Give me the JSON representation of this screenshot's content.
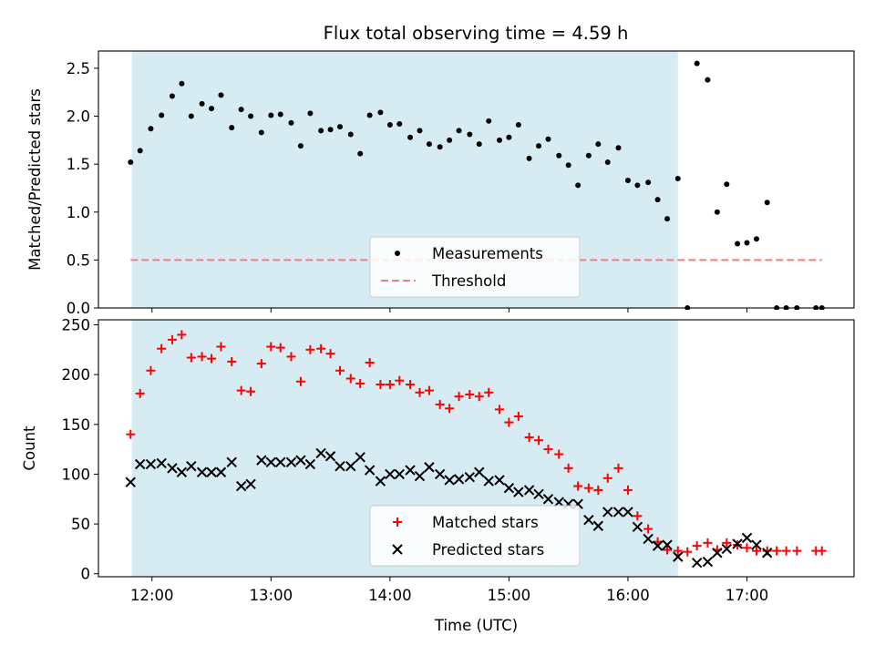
{
  "title": "Flux total observing time = 4.59 h",
  "colors": {
    "shade": "#add8e6",
    "threshold": "#f08080",
    "matched": "#ff0000",
    "predicted": "#000000",
    "measurement": "#000000"
  },
  "chart_data": [
    {
      "type": "scatter",
      "panel": "top",
      "ylabel": "Matched/Predicted stars",
      "xlim": [
        11.55,
        17.9
      ],
      "ylim": [
        0,
        2.68
      ],
      "yticks": [
        0.0,
        0.5,
        1.0,
        1.5,
        2.0,
        2.5
      ],
      "ytick_labels": [
        "0.0",
        "0.5",
        "1.0",
        "1.5",
        "2.0",
        "2.5"
      ],
      "shaded_span": [
        11.83,
        16.42
      ],
      "legend": {
        "placement": "lower-center",
        "entries": [
          "Measurements",
          "Threshold"
        ]
      },
      "series": [
        {
          "name": "Measurements",
          "marker": "dot",
          "x": [
            11.82,
            11.9,
            11.99,
            12.08,
            12.17,
            12.25,
            12.33,
            12.42,
            12.5,
            12.58,
            12.67,
            12.75,
            12.83,
            12.92,
            13.0,
            13.08,
            13.17,
            13.25,
            13.33,
            13.42,
            13.5,
            13.58,
            13.67,
            13.75,
            13.83,
            13.92,
            14.0,
            14.08,
            14.17,
            14.25,
            14.33,
            14.42,
            14.5,
            14.58,
            14.67,
            14.75,
            14.83,
            14.92,
            15.0,
            15.08,
            15.17,
            15.25,
            15.33,
            15.42,
            15.5,
            15.58,
            15.67,
            15.75,
            15.83,
            15.92,
            16.0,
            16.08,
            16.17,
            16.25,
            16.33,
            16.42,
            16.5,
            16.58,
            16.67,
            16.75,
            16.83,
            16.92,
            17.0,
            17.08,
            17.17,
            17.25,
            17.33,
            17.42,
            17.58,
            17.63
          ],
          "y": [
            1.52,
            1.64,
            1.87,
            2.01,
            2.21,
            2.34,
            2.0,
            2.13,
            2.08,
            2.22,
            1.88,
            2.07,
            2.0,
            1.83,
            2.01,
            2.02,
            1.93,
            1.69,
            2.03,
            1.85,
            1.86,
            1.89,
            1.81,
            1.61,
            2.01,
            2.04,
            1.91,
            1.92,
            1.78,
            1.85,
            1.71,
            1.68,
            1.75,
            1.85,
            1.81,
            1.71,
            1.95,
            1.75,
            1.78,
            1.91,
            1.56,
            1.69,
            1.76,
            1.59,
            1.49,
            1.28,
            1.59,
            1.71,
            1.52,
            1.67,
            1.33,
            1.28,
            1.31,
            1.13,
            0.93,
            1.35,
            0.0,
            2.55,
            2.38,
            1.0,
            1.29,
            0.67,
            0.68,
            0.72,
            1.1,
            0.0,
            0.0,
            0.0,
            0.0,
            0.0
          ]
        },
        {
          "name": "Threshold",
          "style": "dashed-line",
          "x": [
            11.82,
            17.63
          ],
          "y": [
            0.5,
            0.5
          ]
        }
      ]
    },
    {
      "type": "scatter",
      "panel": "bottom",
      "xlabel": "Time (UTC)",
      "ylabel": "Count",
      "xlim": [
        11.55,
        17.9
      ],
      "ylim": [
        -3,
        255
      ],
      "yticks": [
        0,
        50,
        100,
        150,
        200,
        250
      ],
      "ytick_labels": [
        "0",
        "50",
        "100",
        "150",
        "200",
        "250"
      ],
      "xticks": [
        12,
        13,
        14,
        15,
        16,
        17
      ],
      "xtick_labels": [
        "12:00",
        "13:00",
        "14:00",
        "15:00",
        "16:00",
        "17:00"
      ],
      "shaded_span": [
        11.83,
        16.42
      ],
      "legend": {
        "placement": "lower-center",
        "entries": [
          "Matched stars",
          "Predicted stars"
        ]
      },
      "series": [
        {
          "name": "Matched stars",
          "marker": "plus",
          "x": [
            11.82,
            11.9,
            11.99,
            12.08,
            12.17,
            12.25,
            12.33,
            12.42,
            12.5,
            12.58,
            12.67,
            12.75,
            12.83,
            12.92,
            13.0,
            13.08,
            13.17,
            13.25,
            13.33,
            13.42,
            13.5,
            13.58,
            13.67,
            13.75,
            13.83,
            13.92,
            14.0,
            14.08,
            14.17,
            14.25,
            14.33,
            14.42,
            14.5,
            14.58,
            14.67,
            14.75,
            14.83,
            14.92,
            15.0,
            15.08,
            15.17,
            15.25,
            15.33,
            15.42,
            15.5,
            15.58,
            15.67,
            15.75,
            15.83,
            15.92,
            16.0,
            16.08,
            16.17,
            16.25,
            16.33,
            16.42,
            16.5,
            16.58,
            16.67,
            16.75,
            16.83,
            16.92,
            17.0,
            17.08,
            17.17,
            17.25,
            17.33,
            17.42,
            17.58,
            17.63
          ],
          "y": [
            140,
            181,
            204,
            226,
            235,
            240,
            217,
            218,
            216,
            228,
            213,
            184,
            183,
            211,
            228,
            227,
            218,
            193,
            225,
            226,
            221,
            204,
            196,
            191,
            212,
            190,
            190,
            194,
            190,
            182,
            184,
            170,
            166,
            178,
            180,
            178,
            182,
            165,
            152,
            158,
            137,
            134,
            125,
            120,
            106,
            88,
            86,
            84,
            96,
            106,
            84,
            58,
            45,
            32,
            24,
            23,
            22,
            28,
            31,
            24,
            31,
            29,
            26,
            23,
            23,
            23,
            23,
            23,
            23,
            23
          ]
        },
        {
          "name": "Predicted stars",
          "marker": "x",
          "x": [
            11.82,
            11.9,
            11.99,
            12.08,
            12.17,
            12.25,
            12.33,
            12.42,
            12.5,
            12.58,
            12.67,
            12.75,
            12.83,
            12.92,
            13.0,
            13.08,
            13.17,
            13.25,
            13.33,
            13.42,
            13.5,
            13.58,
            13.67,
            13.75,
            13.83,
            13.92,
            14.0,
            14.08,
            14.17,
            14.25,
            14.33,
            14.42,
            14.5,
            14.58,
            14.67,
            14.75,
            14.83,
            14.92,
            15.0,
            15.08,
            15.17,
            15.25,
            15.33,
            15.42,
            15.5,
            15.58,
            15.67,
            15.75,
            15.83,
            15.92,
            16.0,
            16.08,
            16.17,
            16.25,
            16.33,
            16.42,
            16.58,
            16.67,
            16.75,
            16.83,
            16.92,
            17.0,
            17.08,
            17.17
          ],
          "y": [
            92,
            110,
            110,
            111,
            106,
            102,
            108,
            102,
            102,
            102,
            112,
            88,
            90,
            114,
            112,
            112,
            112,
            114,
            110,
            121,
            118,
            108,
            108,
            117,
            104,
            93,
            100,
            100,
            104,
            98,
            107,
            100,
            94,
            95,
            97,
            102,
            93,
            94,
            86,
            82,
            84,
            80,
            75,
            72,
            70,
            70,
            54,
            48,
            62,
            62,
            62,
            47,
            35,
            28,
            29,
            17,
            11,
            12,
            21,
            25,
            30,
            36,
            29,
            21
          ]
        }
      ]
    }
  ]
}
